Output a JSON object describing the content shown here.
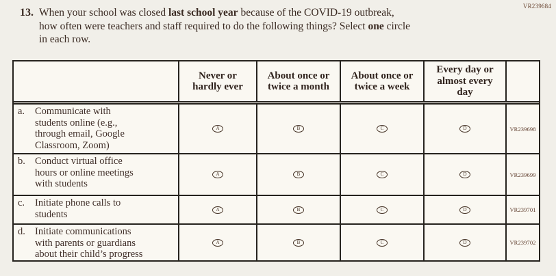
{
  "page": {
    "top_code": "VR239684"
  },
  "question": {
    "number": "13.",
    "line1_a": "When your school was closed ",
    "line1_b": "last school year",
    "line1_c": " because of the COVID-19 outbreak,",
    "line2_a": "how often were teachers and staff required to do the following things? Select ",
    "line2_b": "one",
    "line2_c": " circle",
    "line3": "in each row."
  },
  "table": {
    "columns": [
      "Never or hardly ever",
      "About once or twice a month",
      "About once or twice a week",
      "Every day or almost every day"
    ],
    "options": [
      "A",
      "B",
      "C",
      "D"
    ],
    "rows": [
      {
        "prefix": "a.",
        "lines": [
          "Communicate with",
          "students online (e.g.,",
          "through email, Google",
          "Classroom, Zoom)"
        ],
        "code": "VR239698"
      },
      {
        "prefix": "b.",
        "lines": [
          "Conduct virtual office",
          "hours or online meetings",
          "with students"
        ],
        "code": "VR239699"
      },
      {
        "prefix": "c.",
        "lines": [
          "Initiate phone calls to",
          "students"
        ],
        "code": "VR239701"
      },
      {
        "prefix": "d.",
        "lines": [
          "Initiate communications",
          "with parents or guardians",
          "about their child’s progress"
        ],
        "code": "VR239702"
      }
    ]
  },
  "colors": {
    "page_background": "#f1efe9",
    "cell_background": "#faf8f2",
    "border": "#26231e",
    "text": "#3a2a22",
    "code_text": "#5e3c2c"
  }
}
